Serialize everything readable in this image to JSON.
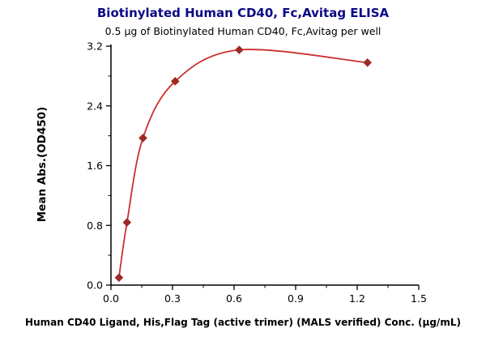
{
  "chart_data": {
    "type": "scatter",
    "title": "Biotinylated Human CD40, Fc,Avitag ELISA",
    "subtitle": "0.5 μg of Biotinylated Human CD40, Fc,Avitag per well",
    "xlabel": "Human CD40 Ligand, His,Flag Tag (active trimer) (MALS verified) Conc. (μg/mL)",
    "ylabel": "Mean Abs.(OD450)",
    "xlim": [
      0,
      1.5
    ],
    "ylim": [
      0,
      3.2
    ],
    "xticks": [
      0,
      0.3,
      0.6,
      0.9,
      1.2,
      1.5
    ],
    "xtick_labels": [
      "0.0",
      "0.3",
      "0.6",
      "0.9",
      "1.2",
      "1.5"
    ],
    "yticks": [
      0,
      0.8,
      1.6,
      2.4,
      3.2
    ],
    "ytick_labels": [
      "0.0",
      "0.8",
      "1.6",
      "2.4",
      "3.2"
    ],
    "x": [
      0.039,
      0.078,
      0.156,
      0.313,
      0.625,
      1.25
    ],
    "y": [
      0.1,
      0.84,
      1.97,
      2.73,
      3.15,
      2.98
    ],
    "marker": "diamond",
    "curve": "smooth fit through points with slight hook decline at highest concentration",
    "grid": false,
    "legend": "none",
    "line_color": "#c9302f",
    "marker_color": "#9e2a25",
    "title_color": "#0a0a85",
    "axis_color": "#000000"
  }
}
